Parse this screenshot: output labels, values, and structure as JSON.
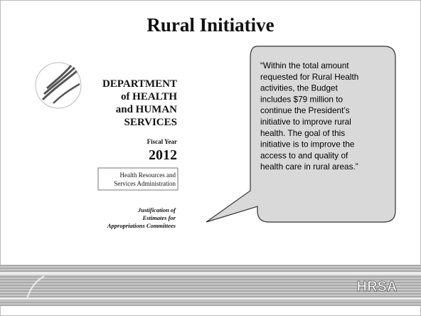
{
  "title": "Rural Initiative",
  "cover": {
    "department": [
      "DEPARTMENT",
      "of HEALTH",
      "and HUMAN",
      "SERVICES"
    ],
    "fiscal_year_label": "Fiscal Year",
    "fiscal_year": "2012",
    "agency": [
      "Health Resources and",
      "Services Administration"
    ],
    "subtitle": [
      "Justification of",
      "Estimates for",
      "Appropriations Committees"
    ]
  },
  "quote": [
    "“Within the total amount",
    "requested for Rural Health",
    "activities, the Budget",
    "includes $79 million to",
    "continue the President’s",
    "initiative to improve rural",
    "health. The goal of this",
    "initiative is to improve the",
    "access to and quality of",
    "health care in rural areas.”"
  ],
  "footer": {
    "logo": "HRSA"
  }
}
